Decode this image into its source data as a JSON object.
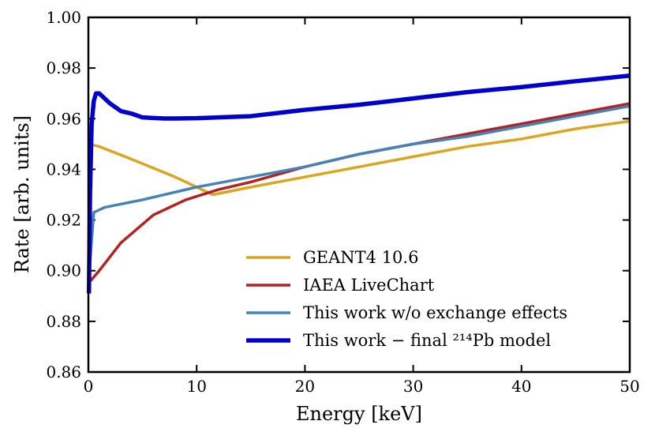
{
  "chart_data": {
    "type": "line",
    "title": "",
    "xlabel": "Energy [keV]",
    "ylabel": "Rate [arb. units]",
    "xlim": [
      0,
      50
    ],
    "ylim": [
      0.86,
      1.0
    ],
    "xticks": [
      0,
      10,
      20,
      30,
      40,
      50
    ],
    "yticks": [
      0.86,
      0.88,
      0.9,
      0.92,
      0.94,
      0.96,
      0.98,
      1.0
    ],
    "xtick_labels": [
      "0",
      "10",
      "20",
      "30",
      "40",
      "50"
    ],
    "ytick_labels": [
      "0.86",
      "0.88",
      "0.90",
      "0.92",
      "0.94",
      "0.96",
      "0.98",
      "1.00"
    ],
    "grid": false,
    "legend_position": "lower-right",
    "series": [
      {
        "name": "GEANT4 10.6",
        "color": "#DAA520",
        "x": [
          0.1,
          1,
          4,
          8,
          11.5,
          15,
          20,
          25,
          30,
          35,
          40,
          45,
          50
        ],
        "y": [
          0.95,
          0.949,
          0.944,
          0.937,
          0.93,
          0.933,
          0.937,
          0.941,
          0.945,
          0.949,
          0.952,
          0.956,
          0.959
        ]
      },
      {
        "name": "IAEA LiveChart",
        "color": "#B22222",
        "x": [
          0,
          1,
          3,
          6,
          9,
          12,
          15,
          20,
          25,
          30,
          35,
          40,
          45,
          50
        ],
        "y": [
          0.895,
          0.9,
          0.911,
          0.922,
          0.928,
          0.932,
          0.935,
          0.941,
          0.946,
          0.95,
          0.954,
          0.958,
          0.962,
          0.966
        ]
      },
      {
        "name": "This work w/o exchange effects",
        "color": "#4682B4",
        "x": [
          0.05,
          0.5,
          1.5,
          5,
          10,
          15,
          20,
          25,
          30,
          35,
          40,
          45,
          50
        ],
        "y": [
          0.898,
          0.923,
          0.925,
          0.928,
          0.933,
          0.937,
          0.941,
          0.946,
          0.95,
          0.953,
          0.957,
          0.961,
          0.965
        ]
      },
      {
        "name": "This work − final ²¹⁴Pb model",
        "color": "#0000CD",
        "x": [
          0.05,
          0.15,
          0.3,
          0.5,
          0.7,
          1.0,
          1.5,
          2,
          3,
          4,
          5,
          6,
          7,
          8,
          10,
          12,
          15,
          20,
          25,
          30,
          35,
          40,
          45,
          50
        ],
        "y": [
          0.891,
          0.93,
          0.958,
          0.967,
          0.97,
          0.97,
          0.968,
          0.966,
          0.963,
          0.962,
          0.9605,
          0.9603,
          0.9601,
          0.9601,
          0.9602,
          0.9605,
          0.961,
          0.9635,
          0.9655,
          0.968,
          0.9705,
          0.9725,
          0.9748,
          0.977
        ]
      }
    ]
  }
}
